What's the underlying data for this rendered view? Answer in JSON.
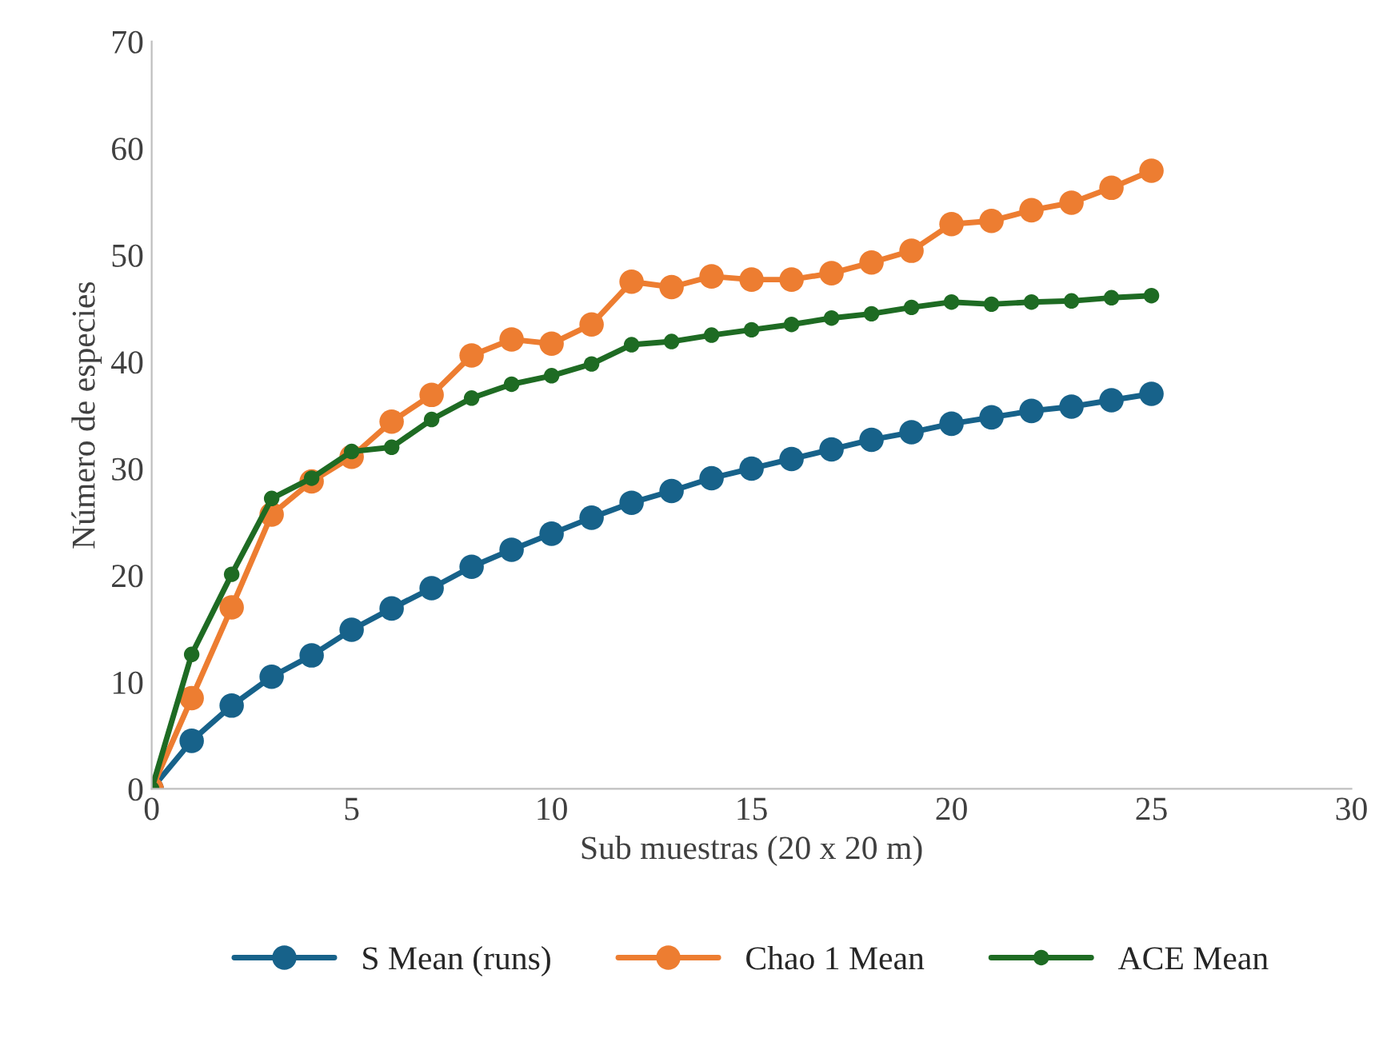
{
  "chart_data": {
    "type": "line",
    "xlabel": "Sub muestras (20 x 20 m)",
    "ylabel": "Número de especies",
    "x": [
      0,
      1,
      2,
      3,
      4,
      5,
      6,
      7,
      8,
      9,
      10,
      11,
      12,
      13,
      14,
      15,
      16,
      17,
      18,
      19,
      20,
      21,
      22,
      23,
      24,
      25
    ],
    "series": [
      {
        "name": "S Mean (runs)",
        "color": "#17628a",
        "values": [
          0,
          4.5,
          7.8,
          10.5,
          12.5,
          14.9,
          16.9,
          18.8,
          20.8,
          22.4,
          23.9,
          25.4,
          26.8,
          27.9,
          29.1,
          30.0,
          30.9,
          31.8,
          32.7,
          33.4,
          34.2,
          34.8,
          35.4,
          35.8,
          36.4,
          37.0
        ]
      },
      {
        "name": "Chao 1 Mean",
        "color": "#ed7d31",
        "values": [
          0,
          8.5,
          17.0,
          25.7,
          28.8,
          31.1,
          34.4,
          36.9,
          40.6,
          42.1,
          41.7,
          43.5,
          47.5,
          47.0,
          48.0,
          47.7,
          47.7,
          48.3,
          49.3,
          50.4,
          52.9,
          53.2,
          54.2,
          54.9,
          56.3,
          57.9
        ]
      },
      {
        "name": "ACE Mean",
        "color": "#1e6b23",
        "values": [
          0,
          12.6,
          20.1,
          27.2,
          29.1,
          31.6,
          32.0,
          34.6,
          36.6,
          37.9,
          38.7,
          39.8,
          41.6,
          41.9,
          42.5,
          43.0,
          43.5,
          44.1,
          44.5,
          45.1,
          45.6,
          45.4,
          45.6,
          45.7,
          46.0,
          46.2
        ]
      }
    ],
    "xlim": [
      0,
      30
    ],
    "xticks": [
      0,
      5,
      10,
      15,
      20,
      25,
      30
    ],
    "ylim": [
      0,
      70
    ],
    "yticks": [
      0,
      10,
      20,
      30,
      40,
      50,
      60,
      70
    ],
    "grid": false,
    "legend": "bottom",
    "marker": "circle",
    "line_style": "solid"
  }
}
